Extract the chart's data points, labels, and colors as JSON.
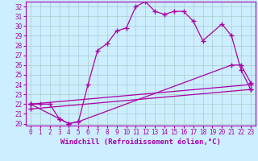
{
  "xlabel": "Windchill (Refroidissement éolien,°C)",
  "bg_color": "#cceeff",
  "grid_color": "#aacccc",
  "line_color": "#aa00aa",
  "xlim": [
    -0.5,
    23.5
  ],
  "ylim": [
    19.8,
    32.5
  ],
  "xticks": [
    0,
    1,
    2,
    3,
    4,
    5,
    6,
    7,
    8,
    9,
    10,
    11,
    12,
    13,
    14,
    15,
    16,
    17,
    18,
    19,
    20,
    21,
    22,
    23
  ],
  "yticks": [
    20,
    21,
    22,
    23,
    24,
    25,
    26,
    27,
    28,
    29,
    30,
    31,
    32
  ],
  "line1_x": [
    0,
    1,
    2,
    3,
    4,
    5,
    6,
    7,
    8,
    9,
    10,
    11,
    12,
    13,
    14,
    15,
    16,
    17,
    18,
    20,
    21,
    22,
    23
  ],
  "line1_y": [
    22,
    22,
    22,
    20.5,
    20.0,
    20.2,
    24.0,
    27.5,
    28.2,
    29.5,
    29.8,
    32.0,
    32.5,
    31.5,
    31.2,
    31.5,
    31.5,
    30.5,
    28.5,
    30.2,
    29.0,
    25.5,
    23.5
  ],
  "line2_x": [
    0,
    3,
    4,
    5,
    21,
    22,
    23
  ],
  "line2_y": [
    22.0,
    20.5,
    20.0,
    20.2,
    26.0,
    26.0,
    24.2
  ],
  "line3_x": [
    0,
    23
  ],
  "line3_y": [
    22.0,
    24.0
  ],
  "line4_x": [
    0,
    23
  ],
  "line4_y": [
    21.5,
    23.5
  ],
  "marker": "+",
  "markersize": 4,
  "linewidth": 0.9,
  "xlabel_fontsize": 6.5,
  "tick_fontsize": 5.5
}
